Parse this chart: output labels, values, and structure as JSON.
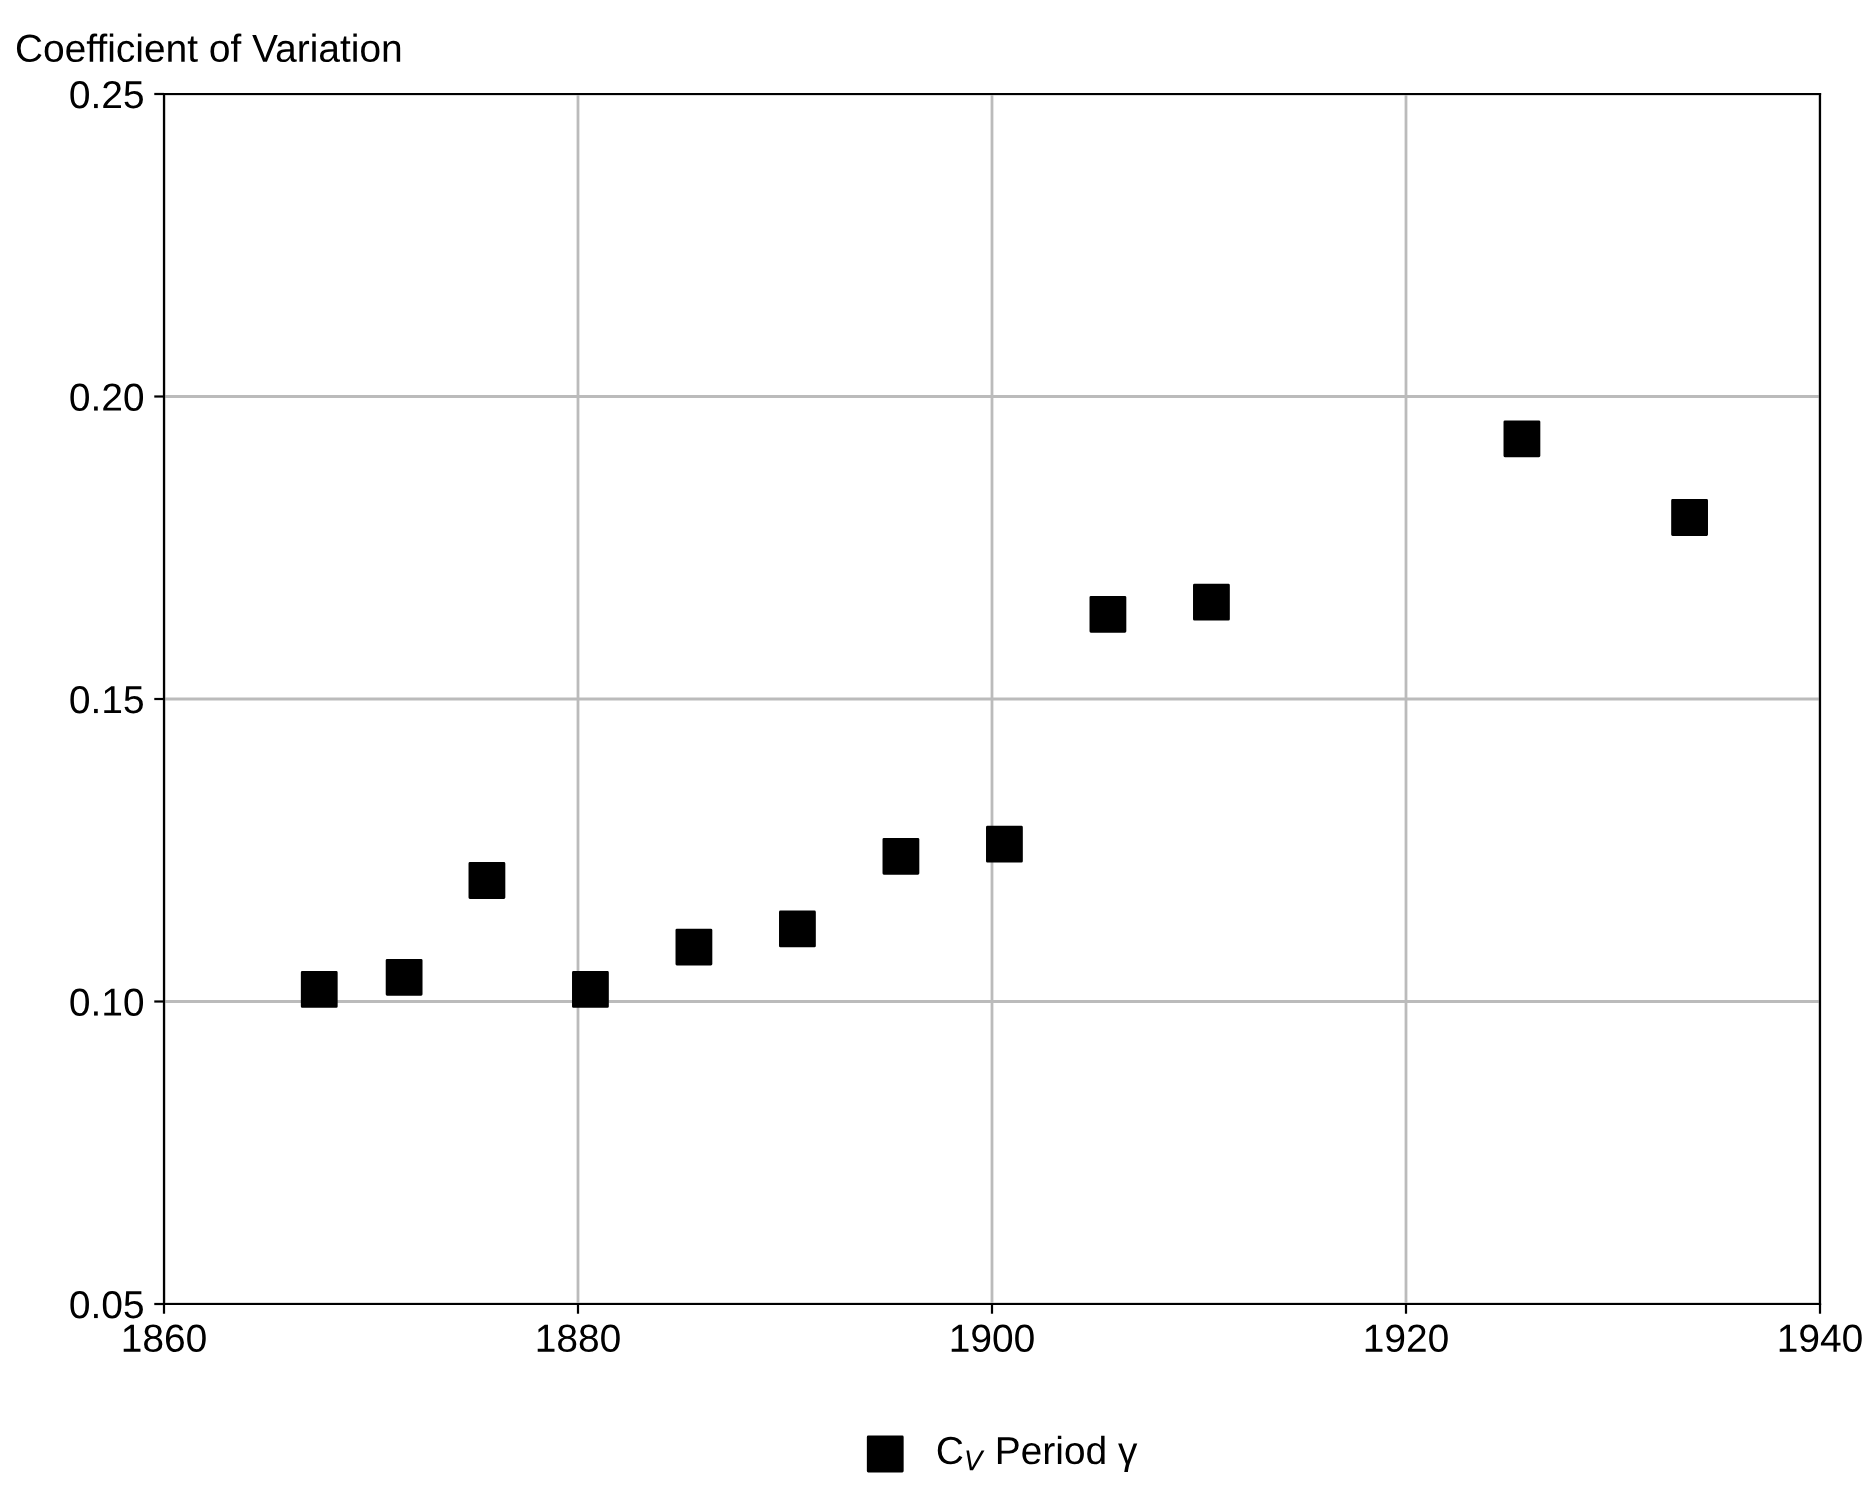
{
  "chart_data": {
    "type": "scatter",
    "ylabel": "Coefficient of Variation",
    "series": [
      {
        "name": "C$_{V}$ Period γ",
        "color": "#000000",
        "marker": "square",
        "x": [
          1867.5,
          1871.6,
          1875.6,
          1880.6,
          1885.6,
          1890.6,
          1895.6,
          1900.6,
          1905.6,
          1910.6,
          1925.6,
          1933.7
        ],
        "values": [
          0.102,
          0.104,
          0.12,
          0.102,
          0.109,
          0.112,
          0.124,
          0.126,
          0.164,
          0.166,
          0.193,
          0.18
        ]
      }
    ],
    "xlim": [
      1860,
      1940
    ],
    "xticks": [
      1860,
      1880,
      1900,
      1920,
      1940
    ],
    "ylim": [
      0.05,
      0.25
    ],
    "yticks": [
      {
        "value": 0.05,
        "label": "0.05"
      },
      {
        "value": 0.1,
        "label": "0.10"
      },
      {
        "value": 0.15,
        "label": "0.15"
      },
      {
        "value": 0.2,
        "label": "0.20"
      },
      {
        "value": 0.25,
        "label": "0.25"
      }
    ],
    "grid": true,
    "legend": "bottom"
  }
}
